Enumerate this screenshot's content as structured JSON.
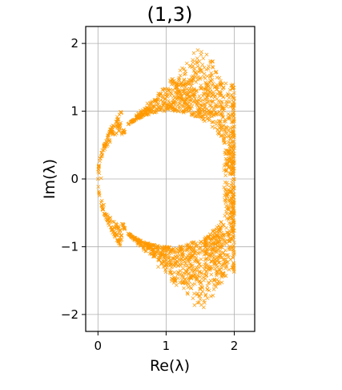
{
  "chart_data": {
    "type": "scatter",
    "title": "(1,3)",
    "xlabel": "Re(λ)",
    "ylabel": "Im(λ)",
    "xlim": [
      -0.18,
      2.3
    ],
    "ylim": [
      -2.25,
      2.25
    ],
    "xticks": [
      0,
      1,
      2
    ],
    "xtick_labels": [
      "0",
      "1",
      "2"
    ],
    "yticks": [
      -2,
      -1,
      0,
      1,
      2
    ],
    "ytick_labels": [
      "−2",
      "−1",
      "0",
      "1",
      "2"
    ],
    "grid": true,
    "marker": "x",
    "color": "#ff9900",
    "series": [
      {
        "values_description_points": [
          [
            0.0,
            0.0
          ],
          [
            0.01,
            0.15
          ],
          [
            0.03,
            0.3
          ],
          [
            0.06,
            0.45
          ],
          [
            0.1,
            0.6
          ],
          [
            0.15,
            0.72
          ],
          [
            0.22,
            0.82
          ],
          [
            0.3,
            0.92
          ],
          [
            0.4,
            1.0
          ],
          [
            0.5,
            1.08
          ],
          [
            0.6,
            1.15
          ],
          [
            0.7,
            1.22
          ],
          [
            0.8,
            1.3
          ],
          [
            0.9,
            1.37
          ],
          [
            1.0,
            1.45
          ],
          [
            1.1,
            1.55
          ],
          [
            1.2,
            1.65
          ],
          [
            1.3,
            1.75
          ],
          [
            1.4,
            1.88
          ],
          [
            1.5,
            2.0
          ],
          [
            1.6,
            1.9
          ],
          [
            1.7,
            1.8
          ],
          [
            1.8,
            1.7
          ],
          [
            1.9,
            1.6
          ],
          [
            2.0,
            1.4
          ],
          [
            2.0,
            1.0
          ],
          [
            2.0,
            0.5
          ],
          [
            2.0,
            0.0
          ],
          [
            0.01,
            -0.15
          ],
          [
            0.03,
            -0.3
          ],
          [
            0.06,
            -0.45
          ],
          [
            0.1,
            -0.6
          ],
          [
            0.15,
            -0.72
          ],
          [
            0.22,
            -0.82
          ],
          [
            0.3,
            -0.92
          ],
          [
            0.4,
            -1.0
          ],
          [
            0.5,
            -1.08
          ],
          [
            0.6,
            -1.15
          ],
          [
            0.7,
            -1.22
          ],
          [
            0.8,
            -1.3
          ],
          [
            0.9,
            -1.37
          ],
          [
            1.0,
            -1.45
          ],
          [
            1.1,
            -1.55
          ],
          [
            1.2,
            -1.65
          ],
          [
            1.3,
            -1.75
          ],
          [
            1.4,
            -1.88
          ],
          [
            1.5,
            -2.0
          ],
          [
            1.6,
            -1.9
          ],
          [
            1.7,
            -1.8
          ],
          [
            1.8,
            -1.7
          ],
          [
            1.9,
            -1.6
          ],
          [
            2.0,
            -1.4
          ],
          [
            2.0,
            -1.0
          ],
          [
            2.0,
            -0.5
          ]
        ]
      }
    ]
  }
}
